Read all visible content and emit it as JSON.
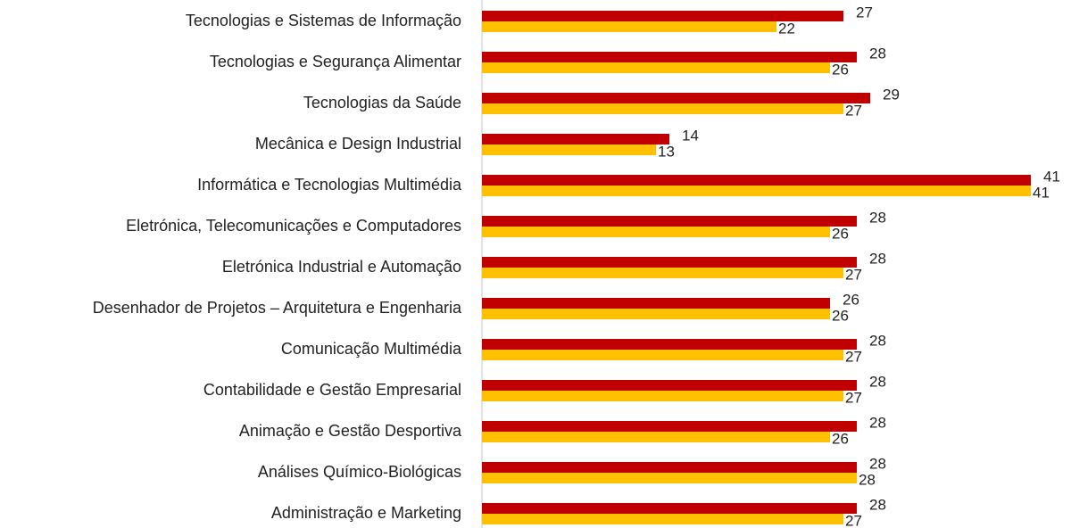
{
  "chart_data": {
    "type": "bar",
    "categories": [
      "Tecnologias e Sistemas de Informação",
      "Tecnologias e Segurança Alimentar",
      "Tecnologias da Saúde",
      "Mecânica e Design Industrial",
      "Informática e Tecnologias Multimédia",
      "Eletrónica, Telecomunicações e Computadores",
      "Eletrónica Industrial e Automação",
      "Desenhador de Projetos – Arquitetura e Engenharia",
      "Comunicação Multimédia",
      "Contabilidade e Gestão Empresarial",
      "Animação e Gestão Desportiva",
      "Análises Químico-Biológicas",
      "Administração e Marketing"
    ],
    "series": [
      {
        "color": "#c00000",
        "values": [
          27,
          28,
          29,
          14,
          41,
          28,
          28,
          26,
          28,
          28,
          28,
          28,
          28
        ]
      },
      {
        "color": "#ffc000",
        "values": [
          22,
          26,
          27,
          13,
          41,
          26,
          27,
          26,
          27,
          27,
          26,
          28,
          27
        ]
      }
    ]
  }
}
